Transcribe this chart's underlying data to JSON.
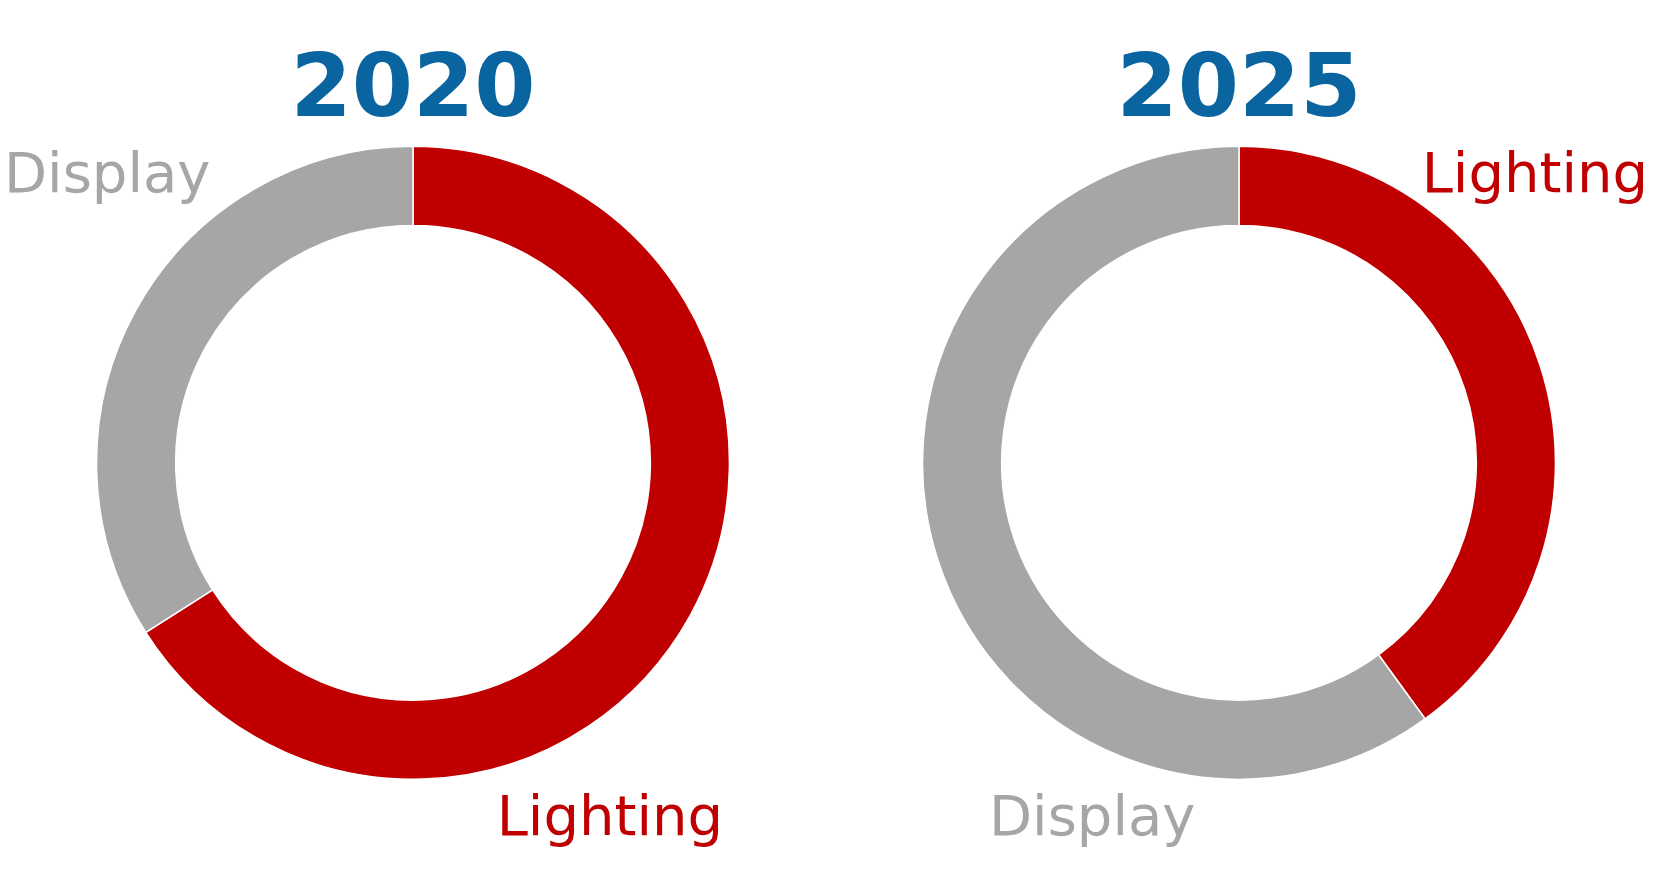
{
  "chart_data": [
    {
      "type": "donut",
      "title": "2020",
      "categories": [
        "Lighting",
        "Display"
      ],
      "values": [
        66,
        34
      ],
      "colors": [
        "#c00000",
        "#a6a6a6"
      ],
      "legend": false
    },
    {
      "type": "donut",
      "title": "2025",
      "categories": [
        "Lighting",
        "Display"
      ],
      "values": [
        40,
        60
      ],
      "colors": [
        "#c00000",
        "#a6a6a6"
      ],
      "legend": false
    }
  ]
}
